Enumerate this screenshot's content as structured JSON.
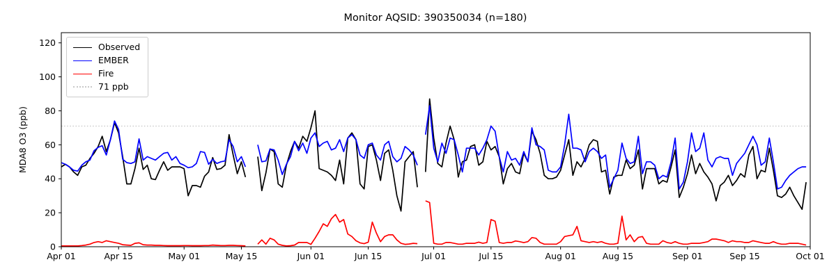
{
  "title": "Monitor AQSID: 390350034 (n=180)",
  "axes": {
    "ylabel": "MDA8 O3 (ppb)",
    "y_ticks": [
      0,
      20,
      40,
      60,
      80,
      100,
      120
    ],
    "x_tick_labels": [
      "Apr 01",
      "Apr 15",
      "May 01",
      "May 15",
      "Jun 01",
      "Jun 15",
      "Jul 01",
      "Jul 15",
      "Aug 01",
      "Aug 15",
      "Sep 01",
      "Sep 15",
      "Oct 01"
    ],
    "x_tick_days": [
      0,
      14,
      30,
      44,
      61,
      75,
      91,
      105,
      122,
      136,
      153,
      167,
      183
    ]
  },
  "legend": {
    "items": [
      {
        "label": "Observed",
        "color": "#000000",
        "style": "solid"
      },
      {
        "label": "EMBER",
        "color": "#0000ff",
        "style": "solid"
      },
      {
        "label": "Fire",
        "color": "#ff0000",
        "style": "solid"
      },
      {
        "label": "71 ppb",
        "color": "#c8c8c8",
        "style": "dotted"
      }
    ]
  },
  "chart_data": {
    "type": "line",
    "title": "Monitor AQSID: 390350034 (n=180)",
    "n_points": 180,
    "xlabel": "",
    "ylabel": "MDA8 O3 (ppb)",
    "x_range_labels": [
      "Apr 01",
      "Oct 01"
    ],
    "x_unit": "day",
    "ylim": [
      0,
      126
    ],
    "grid": false,
    "legend_position": "upper-left",
    "threshold": {
      "label": "71 ppb",
      "value": 71,
      "color": "#c8c8c8",
      "style": "dotted"
    },
    "missing_days": [
      "May 17",
      "May 18",
      "Jun 28"
    ],
    "series": [
      {
        "name": "Observed",
        "color": "#000000",
        "values": [
          47,
          48.5,
          47,
          44,
          42,
          47,
          48,
          52,
          55,
          59,
          65,
          56,
          63,
          73,
          67,
          53,
          37,
          37,
          46,
          58,
          45.5,
          48,
          40,
          39.5,
          45,
          50,
          45,
          47,
          47,
          47,
          46,
          30,
          36,
          36,
          35,
          41.5,
          44,
          52.5,
          45.5,
          46,
          48,
          66,
          54,
          43,
          50,
          41,
          null,
          null,
          53,
          33,
          43.5,
          57.5,
          56,
          37,
          35,
          48,
          56,
          62,
          58,
          65,
          62,
          70,
          80,
          46,
          45,
          44,
          42,
          39,
          51,
          37,
          64,
          67,
          63,
          37,
          34,
          59,
          60,
          51,
          39,
          55,
          57,
          45,
          30,
          21,
          50,
          53,
          56,
          35,
          null,
          44,
          87,
          64,
          49,
          47,
          61,
          71,
          63,
          41,
          50,
          51,
          59,
          60,
          48,
          50,
          62,
          57,
          59,
          53,
          37,
          46,
          49,
          44,
          43,
          55,
          50,
          68,
          63,
          55,
          42,
          40,
          40,
          41,
          45,
          54,
          63,
          42,
          50,
          47,
          52,
          60,
          63,
          62,
          44,
          45,
          31,
          41,
          42,
          42,
          51,
          46,
          48,
          57,
          34,
          46,
          46,
          46,
          37,
          39,
          38,
          47,
          57,
          29,
          35,
          43,
          54,
          43,
          49,
          44,
          41,
          37,
          27,
          36,
          38,
          42,
          36,
          39,
          43,
          41,
          54,
          59,
          40,
          45,
          44,
          58,
          45,
          30,
          29,
          31,
          35,
          30,
          26,
          22,
          38
        ]
      },
      {
        "name": "EMBER",
        "color": "#0000ff",
        "values": [
          49.5,
          48.5,
          47,
          45,
          44.5,
          48,
          50,
          51,
          56.5,
          58.5,
          59.5,
          54,
          63,
          74,
          69,
          51.5,
          49.5,
          49,
          50,
          63.5,
          51,
          53,
          52,
          51,
          53,
          55,
          55.5,
          51,
          53,
          49,
          48,
          46.5,
          47,
          49,
          56,
          55.5,
          48.5,
          51.5,
          49,
          50,
          50.5,
          63,
          59,
          50,
          53,
          47,
          null,
          null,
          60,
          50,
          50.5,
          57.5,
          57,
          51,
          42.5,
          48.5,
          53,
          62,
          56.5,
          61,
          55,
          64,
          67,
          59,
          61,
          62,
          57,
          58,
          63,
          56,
          64,
          66,
          63,
          54,
          52,
          60,
          61,
          54,
          51,
          60,
          62,
          53,
          50,
          52,
          59,
          57,
          54,
          48,
          null,
          66,
          83,
          58,
          50,
          61,
          55,
          64,
          63,
          54,
          44,
          58,
          58,
          58,
          54,
          58,
          63,
          71,
          68,
          53,
          44,
          56,
          51,
          52,
          48,
          56,
          50,
          70,
          60,
          59,
          57,
          45,
          44,
          44,
          47,
          60,
          78,
          58,
          58,
          57,
          50,
          56,
          58,
          56,
          52,
          54,
          35,
          40,
          45,
          61,
          52,
          49,
          50,
          65,
          43,
          50,
          50,
          48,
          40,
          42,
          41,
          50,
          64,
          34,
          38,
          50,
          67,
          56,
          58,
          67,
          51,
          47,
          52,
          53,
          52,
          52,
          42,
          49,
          52,
          55,
          60,
          65,
          60,
          48,
          50,
          64,
          50,
          34,
          35,
          39,
          42,
          44,
          46,
          47,
          47
        ]
      },
      {
        "name": "Fire",
        "color": "#ff0000",
        "values": [
          0.5,
          0.5,
          0.5,
          0.5,
          0.5,
          0.7,
          1,
          1.5,
          2.5,
          3,
          2.5,
          3.5,
          3,
          2.5,
          2,
          1.2,
          1,
          0.8,
          2,
          2.3,
          1.2,
          1,
          1,
          0.8,
          0.8,
          0.7,
          0.6,
          0.6,
          0.6,
          0.6,
          0.7,
          0.7,
          0.6,
          0.6,
          0.6,
          0.7,
          0.7,
          1,
          0.8,
          0.7,
          0.7,
          0.8,
          0.8,
          0.7,
          0.6,
          0.5,
          null,
          null,
          1.5,
          4,
          1.5,
          5,
          4,
          1.5,
          0.8,
          0.5,
          0.6,
          1,
          2.5,
          2.5,
          2.5,
          1.4,
          5,
          9,
          13.5,
          12,
          16.5,
          19,
          14.5,
          16,
          7.5,
          6,
          3.5,
          2.3,
          1.8,
          2.7,
          14.5,
          8,
          3,
          6,
          7,
          7,
          4,
          2,
          1.4,
          1.6,
          2,
          1.8,
          null,
          27,
          26,
          2,
          1.5,
          1.5,
          2.5,
          2.5,
          2,
          1.5,
          1.5,
          2,
          2,
          2,
          2.7,
          2,
          2.5,
          16,
          15,
          2.5,
          2,
          2.5,
          2.5,
          3.4,
          3,
          2.4,
          3,
          5.4,
          5,
          2.5,
          1.5,
          1.5,
          1.5,
          1.5,
          3,
          6,
          6.5,
          7,
          12,
          3.5,
          3,
          2.5,
          3,
          2.5,
          3,
          2,
          1.5,
          1.5,
          2,
          18,
          4,
          7,
          3,
          5.5,
          6,
          2,
          1.5,
          1.5,
          1.5,
          3.5,
          2.5,
          2,
          3,
          2,
          1.5,
          1.5,
          2,
          2,
          2,
          2.5,
          3,
          4.5,
          4.5,
          4,
          3.5,
          2.5,
          3.5,
          3,
          3,
          2.5,
          2.5,
          3.5,
          3,
          2.5,
          2,
          2,
          3,
          2,
          1.5,
          1.5,
          2,
          2,
          2,
          1.5,
          1
        ]
      }
    ]
  }
}
